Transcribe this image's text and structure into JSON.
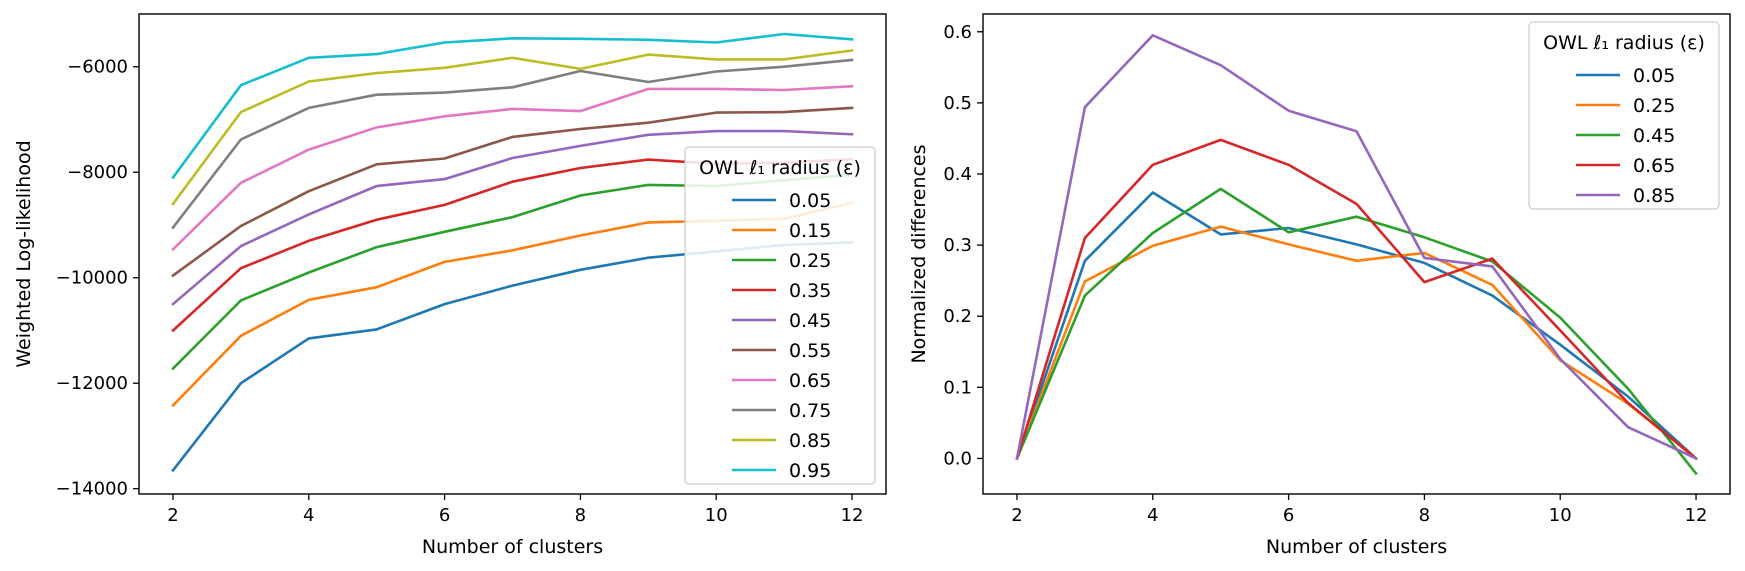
{
  "chart_data": [
    {
      "type": "line",
      "title": "",
      "xlabel": "Number of clusters",
      "ylabel": "Weighted Log-likelihood",
      "xlim": [
        1.5,
        12.5
      ],
      "ylim": [
        -14100,
        -5000
      ],
      "xticks": [
        2,
        4,
        6,
        8,
        10,
        12
      ],
      "xtick_labels": [
        "2",
        "4",
        "6",
        "8",
        "10",
        "12"
      ],
      "yticks": [
        -14000,
        -12000,
        -10000,
        -8000,
        -6000
      ],
      "ytick_labels": [
        "−14000",
        "−12000",
        "−10000",
        "−8000",
        "−6000"
      ],
      "legend_title": "OWL ℓ₁ radius (ε)",
      "legend_position": "center-right",
      "x": [
        2,
        3,
        4,
        5,
        6,
        7,
        8,
        9,
        10,
        11,
        12
      ],
      "series": [
        {
          "name": "0.05",
          "color": "#1f77b4",
          "values": [
            -13650,
            -12000,
            -11150,
            -10980,
            -10500,
            -10150,
            -9850,
            -9620,
            -9500,
            -9380,
            -9330
          ]
        },
        {
          "name": "0.15",
          "color": "#ff7f0e",
          "values": [
            -12420,
            -11100,
            -10420,
            -10180,
            -9700,
            -9480,
            -9200,
            -8950,
            -8920,
            -8880,
            -8580
          ]
        },
        {
          "name": "0.25",
          "color": "#2ca02c",
          "values": [
            -11720,
            -10430,
            -9900,
            -9420,
            -9130,
            -8850,
            -8440,
            -8240,
            -8260,
            -8150,
            -8050
          ]
        },
        {
          "name": "0.35",
          "color": "#d62728",
          "values": [
            -11000,
            -9820,
            -9300,
            -8900,
            -8620,
            -8180,
            -7920,
            -7760,
            -7840,
            -7820,
            -7750
          ]
        },
        {
          "name": "0.45",
          "color": "#9467bd",
          "values": [
            -10500,
            -9400,
            -8800,
            -8260,
            -8130,
            -7730,
            -7500,
            -7290,
            -7220,
            -7220,
            -7280
          ]
        },
        {
          "name": "0.55",
          "color": "#8c564b",
          "values": [
            -9960,
            -9020,
            -8360,
            -7850,
            -7740,
            -7330,
            -7180,
            -7060,
            -6870,
            -6860,
            -6780
          ]
        },
        {
          "name": "0.65",
          "color": "#e377c2",
          "values": [
            -9460,
            -8200,
            -7570,
            -7150,
            -6940,
            -6800,
            -6840,
            -6420,
            -6420,
            -6440,
            -6370
          ]
        },
        {
          "name": "0.75",
          "color": "#7f7f7f",
          "values": [
            -9050,
            -7380,
            -6780,
            -6530,
            -6490,
            -6390,
            -6080,
            -6290,
            -6090,
            -6000,
            -5870
          ]
        },
        {
          "name": "0.85",
          "color": "#bcbd22",
          "values": [
            -8600,
            -6860,
            -6280,
            -6120,
            -6020,
            -5830,
            -6040,
            -5770,
            -5860,
            -5860,
            -5690
          ]
        },
        {
          "name": "0.95",
          "color": "#17becf",
          "values": [
            -8100,
            -6350,
            -5830,
            -5760,
            -5540,
            -5460,
            -5470,
            -5490,
            -5540,
            -5380,
            -5480
          ]
        }
      ]
    },
    {
      "type": "line",
      "title": "",
      "xlabel": "Number of clusters",
      "ylabel": "Normalized differences",
      "xlim": [
        1.5,
        12.5
      ],
      "ylim": [
        -0.05,
        0.625
      ],
      "xticks": [
        2,
        4,
        6,
        8,
        10,
        12
      ],
      "xtick_labels": [
        "2",
        "4",
        "6",
        "8",
        "10",
        "12"
      ],
      "yticks": [
        0.0,
        0.1,
        0.2,
        0.3,
        0.4,
        0.5,
        0.6
      ],
      "ytick_labels": [
        "0.0",
        "0.1",
        "0.2",
        "0.3",
        "0.4",
        "0.5",
        "0.6"
      ],
      "legend_title": "OWL ℓ₁ radius (ε)",
      "legend_position": "top-right",
      "x": [
        2,
        3,
        4,
        5,
        6,
        7,
        8,
        9,
        10,
        11,
        12
      ],
      "series": [
        {
          "name": "0.05",
          "color": "#1f77b4",
          "values": [
            0.0,
            0.278,
            0.374,
            0.315,
            0.324,
            0.301,
            0.275,
            0.229,
            0.16,
            0.087,
            0.0
          ]
        },
        {
          "name": "0.25",
          "color": "#ff7f0e",
          "values": [
            0.0,
            0.249,
            0.299,
            0.326,
            0.301,
            0.278,
            0.289,
            0.244,
            0.138,
            0.077,
            0.0
          ]
        },
        {
          "name": "0.45",
          "color": "#2ca02c",
          "values": [
            0.0,
            0.229,
            0.317,
            0.379,
            0.318,
            0.34,
            0.311,
            0.277,
            0.198,
            0.098,
            -0.021
          ]
        },
        {
          "name": "0.65",
          "color": "#d62728",
          "values": [
            0.0,
            0.31,
            0.413,
            0.448,
            0.413,
            0.358,
            0.248,
            0.281,
            0.18,
            0.078,
            0.0
          ]
        },
        {
          "name": "0.85",
          "color": "#9467bd",
          "values": [
            0.0,
            0.494,
            0.595,
            0.553,
            0.489,
            0.46,
            0.282,
            0.27,
            0.14,
            0.044,
            0.0
          ]
        }
      ]
    }
  ]
}
